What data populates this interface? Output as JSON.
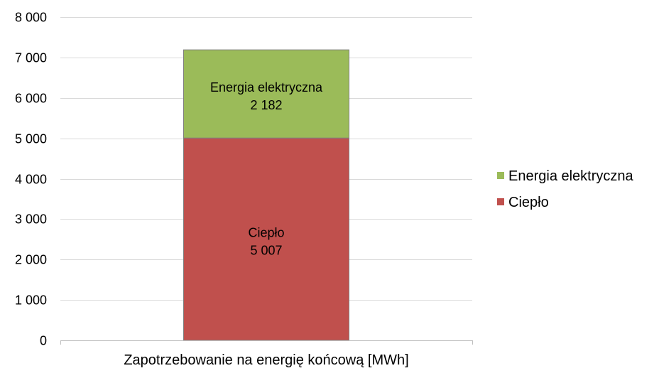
{
  "chart_data": {
    "type": "bar",
    "stacked": true,
    "categories": [
      "Zapotrzebowanie na energię końcową [MWh]"
    ],
    "series": [
      {
        "name": "Ciepło",
        "values": [
          5007
        ],
        "display_values": [
          "5 007"
        ],
        "color": "#C0504D"
      },
      {
        "name": "Energia elektryczna",
        "values": [
          2182
        ],
        "display_values": [
          "2 182"
        ],
        "color": "#9BBB59"
      }
    ],
    "legend_order": [
      "Energia elektryczna",
      "Ciepło"
    ],
    "title": "",
    "xlabel": "",
    "ylabel": "",
    "ylim": [
      0,
      8000
    ],
    "ytick_labels": [
      "0",
      "1 000",
      "2 000",
      "3 000",
      "4 000",
      "5 000",
      "6 000",
      "7 000",
      "8 000"
    ],
    "grid": true,
    "legend_position": "right"
  }
}
